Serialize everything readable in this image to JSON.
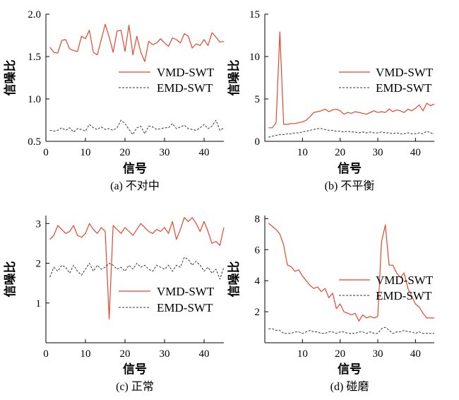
{
  "colors": {
    "vmd": "#e8452c",
    "emd": "#333333",
    "axis": "#000000"
  },
  "chart_data": [
    {
      "id": "a",
      "type": "line",
      "caption": "(a) 不对中",
      "xlabel": "信号",
      "ylabel": "信噪比",
      "xlim": [
        0,
        45
      ],
      "ylim": [
        0.5,
        2.0
      ],
      "xticks": [
        0,
        10,
        20,
        30,
        40
      ],
      "xtick_labels": [
        "0",
        "10",
        "20",
        "30",
        "40"
      ],
      "yticks": [
        0.5,
        1.0,
        1.5,
        2.0
      ],
      "ytick_labels": [
        "0.5",
        "1.0",
        "1.5",
        "2.0"
      ],
      "legend": {
        "position": "center-right",
        "entries": [
          "VMD-SWT",
          "EMD-SWT"
        ]
      },
      "x": [
        1,
        2,
        3,
        4,
        5,
        6,
        7,
        8,
        9,
        10,
        11,
        12,
        13,
        14,
        15,
        16,
        17,
        18,
        19,
        20,
        21,
        22,
        23,
        24,
        25,
        26,
        27,
        28,
        29,
        30,
        31,
        32,
        33,
        34,
        35,
        36,
        37,
        38,
        39,
        40,
        41,
        42,
        43,
        44,
        45
      ],
      "series": [
        {
          "name": "VMD-SWT",
          "style": "solid",
          "values": [
            1.61,
            1.55,
            1.54,
            1.69,
            1.7,
            1.59,
            1.57,
            1.56,
            1.74,
            1.71,
            1.81,
            1.55,
            1.52,
            1.7,
            1.88,
            1.73,
            1.55,
            1.8,
            1.81,
            1.56,
            1.87,
            1.52,
            1.74,
            1.55,
            1.44,
            1.68,
            1.64,
            1.66,
            1.71,
            1.66,
            1.62,
            1.72,
            1.7,
            1.66,
            1.77,
            1.74,
            1.6,
            1.65,
            1.63,
            1.7,
            1.63,
            1.78,
            1.73,
            1.67,
            1.68
          ]
        },
        {
          "name": "EMD-SWT",
          "style": "dashed",
          "values": [
            0.63,
            0.62,
            0.63,
            0.66,
            0.63,
            0.66,
            0.61,
            0.65,
            0.64,
            0.62,
            0.7,
            0.66,
            0.64,
            0.67,
            0.64,
            0.65,
            0.63,
            0.66,
            0.75,
            0.71,
            0.64,
            0.58,
            0.66,
            0.68,
            0.59,
            0.68,
            0.67,
            0.64,
            0.65,
            0.66,
            0.66,
            0.71,
            0.65,
            0.67,
            0.69,
            0.65,
            0.64,
            0.63,
            0.66,
            0.7,
            0.65,
            0.68,
            0.75,
            0.63,
            0.66
          ]
        }
      ]
    },
    {
      "id": "b",
      "type": "line",
      "caption": "(b) 不平衡",
      "xlabel": "信号",
      "ylabel": "信噪比",
      "xlim": [
        0,
        45
      ],
      "ylim": [
        0,
        15
      ],
      "xticks": [
        10,
        20,
        30,
        40
      ],
      "xtick_labels": [
        "10",
        "20",
        "30",
        "40"
      ],
      "yticks": [
        0,
        5,
        10,
        15
      ],
      "ytick_labels": [
        "0",
        "5",
        "10",
        "15"
      ],
      "legend": {
        "position": "center-right",
        "entries": [
          "VMD-SWT",
          "EMD-SWT"
        ]
      },
      "x": [
        1,
        2,
        3,
        4,
        5,
        6,
        7,
        8,
        9,
        10,
        11,
        12,
        13,
        14,
        15,
        16,
        17,
        18,
        19,
        20,
        21,
        22,
        23,
        24,
        25,
        26,
        27,
        28,
        29,
        30,
        31,
        32,
        33,
        34,
        35,
        36,
        37,
        38,
        39,
        40,
        41,
        42,
        43,
        44,
        45
      ],
      "series": [
        {
          "name": "VMD-SWT",
          "style": "solid",
          "values": [
            1.6,
            1.6,
            2.2,
            12.9,
            2.0,
            2.0,
            2.1,
            2.1,
            2.2,
            2.3,
            2.5,
            2.9,
            3.4,
            3.5,
            3.6,
            3.8,
            3.5,
            3.7,
            3.8,
            3.6,
            3.2,
            3.4,
            3.3,
            3.5,
            3.4,
            3.3,
            3.2,
            3.4,
            3.6,
            3.4,
            3.5,
            3.4,
            3.8,
            3.5,
            3.7,
            3.6,
            3.4,
            3.8,
            3.6,
            3.9,
            4.3,
            3.6,
            4.5,
            4.2,
            4.4
          ]
        },
        {
          "name": "EMD-SWT",
          "style": "dashed",
          "values": [
            0.5,
            0.6,
            0.7,
            0.8,
            0.8,
            0.9,
            0.9,
            1.0,
            1.0,
            1.1,
            1.2,
            1.3,
            1.4,
            1.5,
            1.5,
            1.4,
            1.3,
            1.3,
            1.2,
            1.2,
            1.1,
            1.2,
            1.1,
            1.1,
            1.0,
            1.1,
            1.0,
            1.1,
            1.0,
            1.0,
            1.1,
            1.0,
            1.0,
            0.9,
            1.0,
            0.9,
            0.9,
            1.0,
            0.9,
            0.9,
            1.0,
            0.9,
            1.2,
            1.0,
            0.9
          ]
        }
      ]
    },
    {
      "id": "c",
      "type": "line",
      "caption": "(c) 正常",
      "xlabel": "信号",
      "ylabel": "信噪比",
      "xlim": [
        0,
        45
      ],
      "ylim": [
        0,
        3.2
      ],
      "xticks": [
        0,
        10,
        20,
        30,
        40
      ],
      "xtick_labels": [
        "0",
        "10",
        "20",
        "30",
        "40"
      ],
      "yticks": [
        1,
        2,
        3
      ],
      "ytick_labels": [
        "1",
        "2",
        "3"
      ],
      "legend": {
        "position": "lower-right",
        "entries": [
          "VMD-SWT",
          "EMD-SWT"
        ]
      },
      "x": [
        1,
        2,
        3,
        4,
        5,
        6,
        7,
        8,
        9,
        10,
        11,
        12,
        13,
        14,
        15,
        16,
        17,
        18,
        19,
        20,
        21,
        22,
        23,
        24,
        25,
        26,
        27,
        28,
        29,
        30,
        31,
        32,
        33,
        34,
        35,
        36,
        37,
        38,
        39,
        40,
        41,
        42,
        43,
        44,
        45
      ],
      "series": [
        {
          "name": "VMD-SWT",
          "style": "solid",
          "values": [
            2.6,
            2.7,
            2.95,
            2.85,
            2.75,
            2.8,
            2.95,
            2.7,
            2.65,
            2.75,
            3.0,
            2.85,
            2.75,
            2.9,
            2.8,
            0.6,
            2.95,
            2.85,
            2.75,
            2.9,
            2.8,
            2.7,
            2.85,
            3.0,
            2.9,
            2.8,
            2.75,
            2.85,
            2.8,
            2.9,
            2.75,
            3.05,
            2.6,
            2.85,
            3.15,
            3.05,
            3.15,
            3.0,
            2.8,
            3.05,
            2.8,
            2.5,
            2.55,
            2.45,
            2.9
          ]
        },
        {
          "name": "EMD-SWT",
          "style": "dashed",
          "values": [
            1.65,
            1.9,
            1.8,
            1.95,
            1.9,
            1.75,
            1.95,
            1.8,
            1.7,
            1.85,
            2.0,
            1.8,
            1.95,
            1.85,
            1.9,
            2.0,
            1.95,
            1.85,
            1.9,
            1.8,
            1.95,
            1.85,
            2.0,
            1.9,
            1.95,
            1.85,
            1.8,
            1.95,
            1.9,
            1.85,
            1.95,
            1.8,
            1.95,
            1.9,
            2.15,
            2.1,
            1.95,
            2.05,
            1.95,
            1.8,
            1.9,
            1.75,
            1.85,
            1.6,
            1.9
          ]
        }
      ]
    },
    {
      "id": "d",
      "type": "line",
      "caption": "(d) 碰磨",
      "xlabel": "信号",
      "ylabel": "信噪比",
      "xlim": [
        0,
        45
      ],
      "ylim": [
        0,
        8.2
      ],
      "xticks": [
        10,
        20,
        30,
        40
      ],
      "xtick_labels": [
        "10",
        "20",
        "30",
        "40"
      ],
      "yticks": [
        2,
        4,
        6,
        8
      ],
      "ytick_labels": [
        "2",
        "4",
        "6",
        "8"
      ],
      "legend": {
        "position": "lower-right",
        "entries": [
          "VMD-SWT",
          "EMD-SWT"
        ]
      },
      "x": [
        1,
        2,
        3,
        4,
        5,
        6,
        7,
        8,
        9,
        10,
        11,
        12,
        13,
        14,
        15,
        16,
        17,
        18,
        19,
        20,
        21,
        22,
        23,
        24,
        25,
        26,
        27,
        28,
        29,
        30,
        31,
        32,
        33,
        34,
        35,
        36,
        37,
        38,
        39,
        40,
        41,
        42,
        43,
        44,
        45
      ],
      "series": [
        {
          "name": "VMD-SWT",
          "style": "solid",
          "values": [
            7.7,
            7.5,
            7.3,
            7.0,
            6.3,
            5.0,
            4.9,
            4.6,
            4.7,
            4.3,
            4.0,
            3.7,
            3.5,
            3.6,
            3.3,
            3.5,
            2.9,
            3.2,
            2.2,
            2.5,
            2.0,
            1.9,
            1.8,
            1.9,
            1.4,
            1.8,
            1.6,
            1.7,
            1.6,
            1.7,
            6.5,
            7.6,
            5.0,
            5.0,
            4.5,
            4.2,
            4.5,
            3.5,
            3.0,
            2.5,
            2.3,
            1.9,
            1.6,
            1.6,
            1.6
          ]
        },
        {
          "name": "EMD-SWT",
          "style": "dashed",
          "values": [
            0.9,
            0.9,
            0.8,
            0.8,
            0.6,
            0.6,
            0.6,
            0.7,
            0.7,
            0.6,
            0.7,
            0.8,
            0.7,
            0.7,
            0.6,
            0.6,
            0.7,
            0.7,
            0.6,
            0.7,
            0.7,
            0.6,
            0.6,
            0.6,
            0.7,
            0.7,
            0.6,
            0.7,
            0.6,
            0.6,
            0.9,
            1.0,
            0.8,
            0.6,
            0.7,
            0.7,
            0.8,
            0.7,
            0.7,
            0.6,
            0.7,
            0.6,
            0.6,
            0.6,
            0.6
          ]
        }
      ]
    }
  ]
}
